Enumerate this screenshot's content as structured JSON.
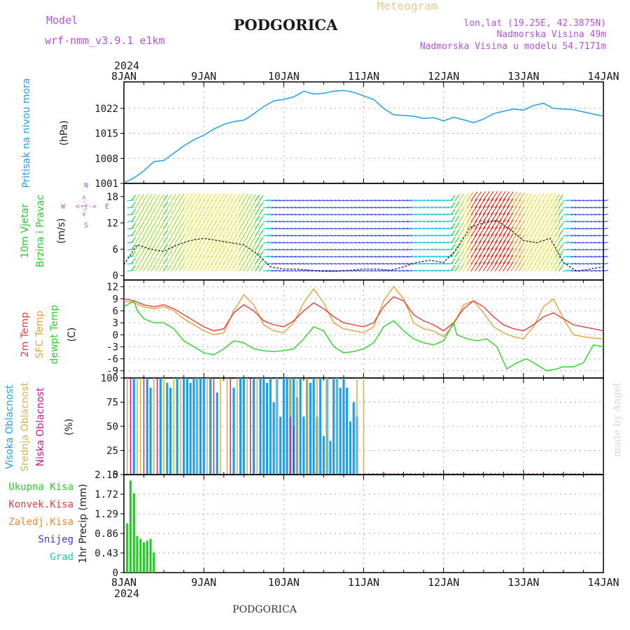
{
  "header": {
    "model_label": "Model",
    "model_name": "wrf-nmm_v3.9.1 e1km",
    "title": "PODGORICA",
    "meteogram_label": "Meteogram",
    "coords": "lon,lat (19.25E, 42.3875N)",
    "altitude": "Nadmorska Visina 49m",
    "model_altitude": "Nadmorska Visina u modelu 54.7171m",
    "year_top": "2024",
    "year_bottom": "2024",
    "footer_title": "PODGORICA",
    "watermark": "made by Angel"
  },
  "colors": {
    "pressure": "#1ea0e6",
    "temp2m": "#e63c3c",
    "sfctemp": "#e6a03c",
    "dewpt": "#28d228",
    "high_cloud": "#1ea0e6",
    "mid_cloud": "#d2b450",
    "low_cloud": "#c8148c",
    "precip": "#28c828",
    "axis_label_purple": "#b450dc"
  },
  "x_axis": {
    "dates": [
      "8JAN",
      "9JAN",
      "10JAN",
      "11JAN",
      "12JAN",
      "13JAN",
      "14JAN"
    ],
    "range_hours": [
      0,
      144
    ]
  },
  "chart_data": [
    {
      "type": "line",
      "panel": "pressure",
      "ylabel_1": "Pritisak na nivou mora",
      "ylabel_2": "(hPa)",
      "ylim": [
        1001,
        1029.4
      ],
      "yticks": [
        1001,
        1008,
        1015,
        1022
      ],
      "grid": true,
      "series": [
        {
          "x": [
            0,
            3,
            6,
            9,
            12,
            14,
            18,
            21,
            24,
            27,
            30,
            33,
            36,
            38,
            42,
            45,
            48,
            51,
            54,
            57,
            60,
            63,
            66,
            69,
            72,
            75,
            78,
            81,
            84,
            87,
            90,
            93,
            96,
            99,
            102,
            105,
            108,
            111,
            114,
            117,
            120,
            123,
            126,
            129,
            132,
            135,
            138,
            141,
            144
          ],
          "values": [
            1001.2,
            1002.5,
            1004.5,
            1007.1,
            1007.4,
            1008.8,
            1011.5,
            1013.2,
            1014.5,
            1016.2,
            1017.5,
            1018.3,
            1018.7,
            1019.8,
            1022.5,
            1024.1,
            1024.5,
            1025.2,
            1026.8,
            1026.0,
            1026.2,
            1026.8,
            1027.0,
            1026.5,
            1025.5,
            1024.5,
            1022.0,
            1020.2,
            1020.0,
            1019.8,
            1019.2,
            1019.4,
            1018.5,
            1019.5,
            1018.8,
            1018.0,
            1019.0,
            1020.5,
            1021.2,
            1021.8,
            1021.5,
            1022.8,
            1023.4,
            1022.0,
            1021.8,
            1021.6,
            1021.0,
            1020.4,
            1019.8
          ]
        }
      ]
    },
    {
      "type": "scatter",
      "panel": "wind",
      "ylabel_1": "10m Vjetar",
      "ylabel_2": "Brzina i Pravac",
      "ylabel_3": "(m/s)",
      "compass": {
        "n": "N",
        "w": "W",
        "e": "E",
        "s": "S",
        "arrows": "<-|->"
      },
      "ylim": [
        -1,
        21
      ],
      "yticks": [
        0,
        6,
        12,
        18
      ],
      "series": [
        {
          "name": "wind speed",
          "x": [
            0,
            4,
            8,
            12,
            16,
            20,
            24,
            28,
            32,
            36,
            40,
            44,
            48,
            52,
            56,
            60,
            64,
            68,
            72,
            76,
            80,
            84,
            88,
            92,
            96,
            100,
            104,
            108,
            112,
            116,
            120,
            124,
            128,
            132,
            136,
            140,
            144
          ],
          "values": [
            2.5,
            7.0,
            6.0,
            5.5,
            7.0,
            8.0,
            8.5,
            8.0,
            7.5,
            7.0,
            5.0,
            2.0,
            1.5,
            1.5,
            1.2,
            1.0,
            1.0,
            1.2,
            1.5,
            1.5,
            1.2,
            2.0,
            3.0,
            3.5,
            3.0,
            6.0,
            11.0,
            12.0,
            12.5,
            10.5,
            8.0,
            7.5,
            8.5,
            3.0,
            1.0,
            1.5,
            2.0
          ]
        }
      ]
    },
    {
      "type": "line",
      "panel": "temperature",
      "ylabel_1": "2m Temp",
      "ylabel_2": "SFC Temp",
      "ylabel_3": "dewpt Temp",
      "ylabel_4": "(C)",
      "ylim": [
        -10.8,
        13.7
      ],
      "yticks": [
        -9,
        -6,
        -3,
        0,
        3,
        6,
        9,
        12
      ],
      "grid": true,
      "series": [
        {
          "name": "2m Temp",
          "x": [
            0,
            3,
            6,
            9,
            12,
            15,
            18,
            21,
            24,
            27,
            30,
            33,
            36,
            39,
            42,
            45,
            48,
            51,
            54,
            57,
            60,
            63,
            66,
            69,
            72,
            75,
            78,
            81,
            84,
            87,
            90,
            93,
            96,
            99,
            102,
            105,
            108,
            111,
            114,
            117,
            120,
            123,
            126,
            129,
            132,
            135,
            138,
            141,
            144
          ],
          "values": [
            9.0,
            8.5,
            7.5,
            7.0,
            7.5,
            6.5,
            5.0,
            3.5,
            2.0,
            1.0,
            1.5,
            5.5,
            7.5,
            6.0,
            3.5,
            2.5,
            2.0,
            3.5,
            6.0,
            8.0,
            6.5,
            4.5,
            3.0,
            2.5,
            2.0,
            3.0,
            7.0,
            9.5,
            8.5,
            5.0,
            3.5,
            2.5,
            1.0,
            3.0,
            6.5,
            8.5,
            7.0,
            4.5,
            2.5,
            1.5,
            1.0,
            2.5,
            4.5,
            5.5,
            4.0,
            2.5,
            2.0,
            1.5,
            1.0
          ]
        },
        {
          "name": "SFC Temp",
          "x": [
            0,
            3,
            6,
            9,
            12,
            15,
            18,
            21,
            24,
            27,
            30,
            33,
            36,
            39,
            42,
            45,
            48,
            51,
            54,
            57,
            60,
            63,
            66,
            69,
            72,
            75,
            78,
            81,
            84,
            87,
            90,
            93,
            96,
            99,
            102,
            105,
            108,
            111,
            114,
            117,
            120,
            123,
            126,
            129,
            132,
            135,
            138,
            141,
            144
          ],
          "values": [
            8.5,
            8.0,
            7.0,
            6.5,
            7.0,
            6.0,
            4.0,
            2.5,
            1.0,
            0.0,
            0.5,
            6.0,
            10.0,
            7.5,
            2.5,
            1.0,
            0.5,
            3.0,
            8.0,
            11.5,
            8.0,
            3.0,
            1.5,
            1.0,
            0.5,
            2.0,
            8.5,
            12.0,
            9.0,
            3.0,
            1.5,
            1.0,
            -0.5,
            2.5,
            7.5,
            8.5,
            5.5,
            2.0,
            0.5,
            -0.5,
            -1.0,
            2.0,
            7.0,
            9.0,
            4.0,
            0.0,
            -0.5,
            -0.8,
            -1.0
          ]
        },
        {
          "name": "dewpt Temp",
          "x": [
            0,
            3,
            4,
            6,
            9,
            12,
            15,
            18,
            21,
            24,
            27,
            30,
            33,
            36,
            39,
            42,
            45,
            48,
            51,
            54,
            57,
            60,
            63,
            66,
            69,
            72,
            75,
            78,
            81,
            84,
            87,
            90,
            93,
            96,
            99,
            100,
            103,
            106,
            109,
            112,
            115,
            118,
            121,
            124,
            127,
            130,
            132,
            135,
            138,
            141,
            144
          ],
          "values": [
            7.0,
            8.5,
            6.0,
            4.0,
            3.0,
            3.0,
            1.5,
            -1.5,
            -3.0,
            -4.5,
            -5.0,
            -3.5,
            -1.5,
            -2.0,
            -3.5,
            -4.0,
            -4.2,
            -4.0,
            -3.5,
            -1.0,
            2.0,
            1.0,
            -3.0,
            -4.5,
            -4.2,
            -3.5,
            -2.0,
            2.0,
            3.5,
            1.0,
            -1.0,
            -2.0,
            -2.5,
            -1.5,
            3.0,
            0.0,
            -1.0,
            -1.5,
            -1.0,
            -3.0,
            -8.5,
            -7.0,
            -6.0,
            -7.5,
            -9.0,
            -8.5,
            -8.0,
            -8.0,
            -7.0,
            -2.5,
            -3.0
          ]
        }
      ]
    },
    {
      "type": "bar",
      "panel": "clouds",
      "ylabel_1": "Visoka Oblacnost",
      "ylabel_2": "Srednja Oblacnost",
      "ylabel_3": "Niska Oblacnost",
      "ylabel_4": "(%)",
      "ylim": [
        0,
        100
      ],
      "yticks": [
        0,
        25,
        50,
        75,
        100
      ],
      "series": [
        {
          "name": "Visoka Oblacnost",
          "x": [
            3,
            7,
            8,
            11,
            13,
            14,
            16,
            18,
            19,
            20,
            21,
            22,
            23,
            24,
            26,
            28,
            33,
            35,
            36,
            39,
            41,
            42,
            43,
            44,
            45,
            46,
            47,
            48,
            49,
            50,
            51,
            52,
            53,
            54,
            55,
            56,
            57,
            58,
            59,
            60,
            61,
            62,
            63,
            64,
            65,
            66,
            67,
            68,
            69,
            70
          ],
          "values": [
            100,
            100,
            90,
            100,
            95,
            90,
            100,
            100,
            100,
            95,
            100,
            100,
            100,
            100,
            100,
            85,
            90,
            100,
            100,
            100,
            100,
            100,
            95,
            100,
            75,
            100,
            60,
            100,
            100,
            100,
            100,
            80,
            100,
            60,
            100,
            95,
            100,
            60,
            100,
            40,
            100,
            35,
            100,
            100,
            90,
            100,
            90,
            55,
            75,
            60
          ]
        },
        {
          "name": "Srednja Oblacnost",
          "x": [
            1,
            4,
            5,
            9,
            12,
            15,
            17,
            22,
            25,
            29,
            31,
            34,
            37,
            40,
            46,
            50,
            52,
            55,
            58,
            61,
            64,
            70,
            72
          ],
          "values": [
            100,
            100,
            100,
            100,
            100,
            100,
            100,
            100,
            100,
            100,
            100,
            100,
            100,
            100,
            100,
            100,
            100,
            100,
            100,
            100,
            100,
            100,
            100
          ]
        },
        {
          "name": "Niska Oblacnost",
          "x": [
            2,
            6,
            10,
            27,
            32,
            38,
            50,
            51
          ],
          "values": [
            100,
            100,
            100,
            100,
            100,
            100,
            60,
            50
          ]
        }
      ]
    },
    {
      "type": "bar",
      "panel": "precip",
      "ylabel": "1hr Precip (mm)",
      "ylim": [
        0,
        2.15
      ],
      "yticks": [
        0,
        0.43,
        0.86,
        1.29,
        1.72,
        2.15
      ],
      "ytick_labels": [
        "0",
        "0.43",
        "0.86",
        "1.29",
        "1.72",
        "2.15"
      ],
      "legend": [
        "Ukupna Kisa",
        "Konvek.Kisa",
        "Zaledj.Kisa",
        "Snijeg",
        "Grad"
      ],
      "legend_colors": [
        "#28c828",
        "#e63c3c",
        "#e68c28",
        "#3c3ce6",
        "#28c8a0"
      ],
      "series": [
        {
          "name": "Ukupna Kisa",
          "x": [
            1,
            2,
            3,
            4,
            5,
            6,
            7,
            8,
            9
          ],
          "values": [
            1.08,
            2.02,
            1.74,
            0.8,
            0.74,
            0.66,
            0.7,
            0.74,
            0.44
          ]
        }
      ]
    }
  ]
}
